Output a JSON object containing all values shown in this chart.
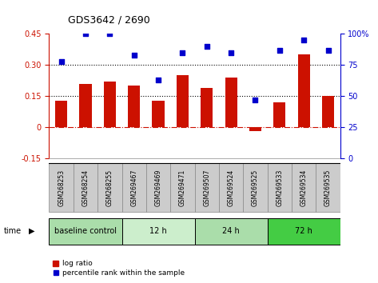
{
  "title": "GDS3642 / 2690",
  "samples": [
    "GSM268253",
    "GSM268254",
    "GSM268255",
    "GSM269467",
    "GSM269469",
    "GSM269471",
    "GSM269507",
    "GSM269524",
    "GSM269525",
    "GSM269533",
    "GSM269534",
    "GSM269535"
  ],
  "log_ratio": [
    0.13,
    0.21,
    0.22,
    0.2,
    0.13,
    0.25,
    0.19,
    0.24,
    -0.02,
    0.12,
    0.35,
    0.15
  ],
  "percentile_rank": [
    78,
    100,
    100,
    83,
    63,
    85,
    90,
    85,
    47,
    87,
    95,
    87
  ],
  "bar_color": "#cc1100",
  "dot_color": "#0000cc",
  "ylim_left": [
    -0.15,
    0.45
  ],
  "ylim_right": [
    0,
    100
  ],
  "yticks_left": [
    -0.15,
    0,
    0.15,
    0.3,
    0.45
  ],
  "ytick_labels_left": [
    "-0.15",
    "0",
    "0.15",
    "0.30",
    "0.45"
  ],
  "yticks_right": [
    0,
    25,
    50,
    75,
    100
  ],
  "ytick_labels_right": [
    "0",
    "25",
    "50",
    "75",
    "100%"
  ],
  "hlines": [
    0.15,
    0.3
  ],
  "groups": [
    {
      "label": "baseline control",
      "start": 0,
      "end": 3,
      "color": "#aaddaa"
    },
    {
      "label": "12 h",
      "start": 3,
      "end": 6,
      "color": "#cceecc"
    },
    {
      "label": "24 h",
      "start": 6,
      "end": 9,
      "color": "#aaddaa"
    },
    {
      "label": "72 h",
      "start": 9,
      "end": 12,
      "color": "#44cc44"
    }
  ],
  "time_label": "time",
  "legend_bar_label": "log ratio",
  "legend_dot_label": "percentile rank within the sample",
  "bg_color": "#ffffff",
  "plot_bg_color": "#ffffff",
  "sample_box_color": "#cccccc",
  "sample_box_edge": "#888888",
  "bar_width": 0.5
}
